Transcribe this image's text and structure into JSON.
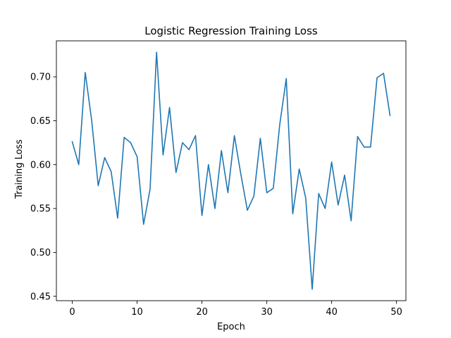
{
  "chart_data": {
    "type": "line",
    "title": "Logistic Regression Training Loss",
    "xlabel": "Epoch",
    "ylabel": "Training Loss",
    "xlim": [
      -2.45,
      51.45
    ],
    "ylim": [
      0.445,
      0.741
    ],
    "xticks": [
      0,
      10,
      20,
      30,
      40,
      50
    ],
    "yticks": [
      0.45,
      0.5,
      0.55,
      0.6,
      0.65,
      0.7
    ],
    "ytick_labels": [
      "0.45",
      "0.50",
      "0.55",
      "0.60",
      "0.65",
      "0.70"
    ],
    "grid": false,
    "line_color": "#1f77b4",
    "series": [
      {
        "x": [
          0,
          1,
          2,
          3,
          4,
          5,
          6,
          7,
          8,
          9,
          10,
          11,
          12,
          13,
          14,
          15,
          16,
          17,
          18,
          19,
          20,
          21,
          22,
          23,
          24,
          25,
          26,
          27,
          28,
          29,
          30,
          31,
          32,
          33,
          34,
          35,
          36,
          37,
          38,
          39,
          40,
          41,
          42,
          43,
          44,
          45,
          46,
          47,
          48,
          49
        ],
        "values": [
          0.626,
          0.6,
          0.705,
          0.65,
          0.576,
          0.608,
          0.592,
          0.539,
          0.631,
          0.625,
          0.609,
          0.532,
          0.572,
          0.728,
          0.611,
          0.665,
          0.591,
          0.625,
          0.617,
          0.633,
          0.542,
          0.6,
          0.55,
          0.616,
          0.568,
          0.633,
          0.589,
          0.548,
          0.564,
          0.63,
          0.568,
          0.573,
          0.646,
          0.698,
          0.544,
          0.595,
          0.562,
          0.458,
          0.567,
          0.55,
          0.603,
          0.554,
          0.588,
          0.536,
          0.632,
          0.62,
          0.62,
          0.699,
          0.704,
          0.656
        ]
      }
    ]
  }
}
